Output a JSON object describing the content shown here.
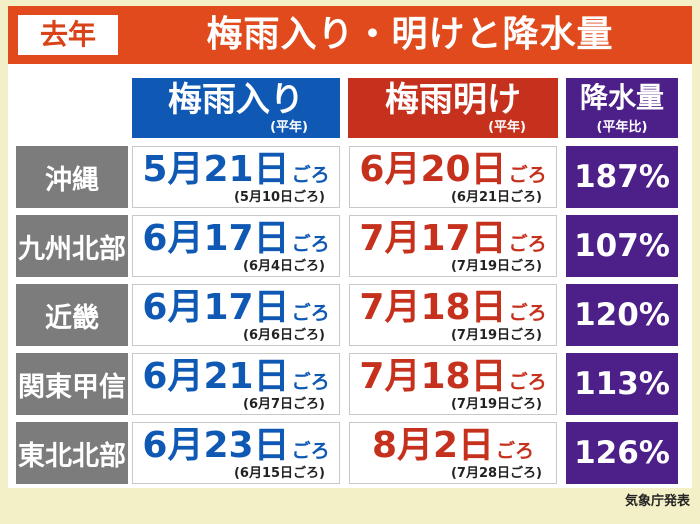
{
  "header": {
    "badge": "去年",
    "title": "梅雨入り・明けと降水量"
  },
  "columns": {
    "rainy_start": {
      "label": "梅雨入り",
      "sub": "(平年)"
    },
    "rainy_end": {
      "label": "梅雨明け",
      "sub": "(平年)"
    },
    "rainfall": {
      "label": "降水量",
      "sub": "(平年比)"
    }
  },
  "suffix": "ごろ",
  "rows": [
    {
      "region": "沖縄",
      "start": "5月21日",
      "start_normal": "(5月10日ごろ)",
      "end": "6月20日",
      "end_normal": "(6月21日ごろ)",
      "rainfall": "187%"
    },
    {
      "region": "九州北部",
      "start": "6月17日",
      "start_normal": "(6月4日ごろ)",
      "end": "7月17日",
      "end_normal": "(7月19日ごろ)",
      "rainfall": "107%"
    },
    {
      "region": "近畿",
      "start": "6月17日",
      "start_normal": "(6月6日ごろ)",
      "end": "7月18日",
      "end_normal": "(7月19日ごろ)",
      "rainfall": "120%"
    },
    {
      "region": "関東甲信",
      "start": "6月21日",
      "start_normal": "(6月7日ごろ)",
      "end": "7月18日",
      "end_normal": "(7月19日ごろ)",
      "rainfall": "113%"
    },
    {
      "region": "東北北部",
      "start": "6月23日",
      "start_normal": "(6月15日ごろ)",
      "end": "8月2日",
      "end_normal": "(7月28日ごろ)",
      "rainfall": "126%"
    }
  ],
  "source": "気象庁発表",
  "colors": {
    "title_bar": "#e14a1c",
    "rainy_start": "#0f59b4",
    "rainy_end": "#c6311e",
    "rainfall": "#4d2089",
    "region": "#7c7c7c"
  }
}
